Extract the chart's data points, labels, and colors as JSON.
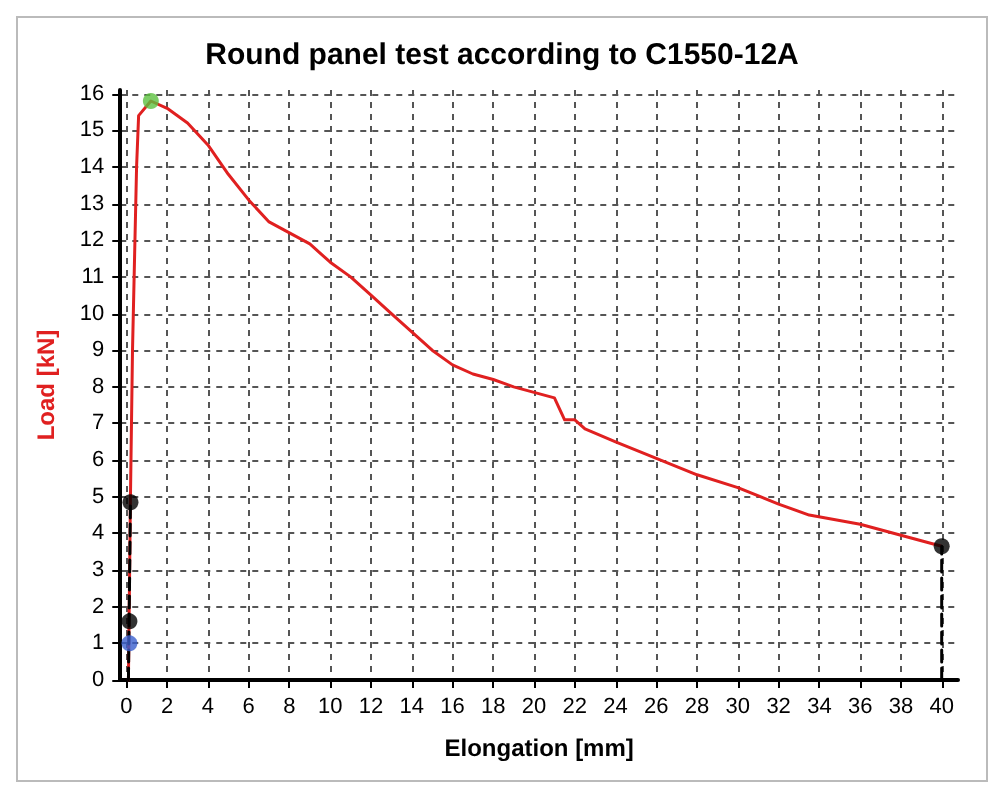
{
  "chart_data": {
    "type": "line",
    "title": "Round panel test according to C1550-12A",
    "xlabel": "Elongation [mm]",
    "ylabel": "Load [kN]",
    "xlim": [
      -0.3,
      40.8
    ],
    "ylim": [
      0,
      16.1
    ],
    "xticks": [
      0,
      2,
      4,
      6,
      8,
      10,
      12,
      14,
      16,
      18,
      20,
      22,
      24,
      26,
      28,
      30,
      32,
      34,
      36,
      38,
      40
    ],
    "yticks": [
      0,
      1,
      2,
      3,
      4,
      5,
      6,
      7,
      8,
      9,
      10,
      11,
      12,
      13,
      14,
      15,
      16
    ],
    "grid": true,
    "series": [
      {
        "type": "line",
        "color": "#e02020",
        "marker": "none",
        "line_style": "solid",
        "x": [
          0.1,
          0.2,
          0.3,
          0.5,
          0.6,
          1.2,
          2,
          3,
          4,
          5,
          6,
          7,
          8,
          9,
          10,
          11,
          12,
          13,
          14,
          15,
          16,
          17,
          18,
          19,
          20,
          21,
          21.5,
          22,
          22.5,
          24,
          26,
          28,
          30,
          32,
          33.5,
          36,
          38,
          40
        ],
        "values": [
          0,
          5,
          9,
          14,
          15.4,
          15.8,
          15.6,
          15.2,
          14.6,
          13.8,
          13.1,
          12.5,
          12.2,
          11.9,
          11.4,
          11.0,
          10.5,
          10.0,
          9.5,
          9.0,
          8.6,
          8.35,
          8.2,
          8.0,
          7.85,
          7.7,
          7.1,
          7.1,
          6.85,
          6.5,
          6.05,
          5.6,
          5.25,
          4.8,
          4.5,
          4.25,
          3.95,
          3.65
        ]
      },
      {
        "type": "line",
        "color": "#000000",
        "marker": "none",
        "line_style": "dashed",
        "x": [
          40,
          40
        ],
        "values": [
          0,
          3.65
        ]
      },
      {
        "type": "line",
        "color": "#000000",
        "marker": "none",
        "line_style": "dashed",
        "x": [
          0.1,
          0.2
        ],
        "values": [
          0,
          4.85
        ]
      },
      {
        "type": "scatter",
        "color": "#000000",
        "marker": "circle",
        "x": [
          0.2,
          0.15,
          40
        ],
        "values": [
          4.85,
          1.6,
          3.65
        ]
      },
      {
        "type": "scatter",
        "color": "#3a5fcd",
        "marker": "circle",
        "x": [
          0.15
        ],
        "values": [
          1.0
        ]
      },
      {
        "type": "scatter",
        "color": "#5cc040",
        "marker": "circle",
        "x": [
          1.2
        ],
        "values": [
          15.8
        ]
      }
    ]
  }
}
